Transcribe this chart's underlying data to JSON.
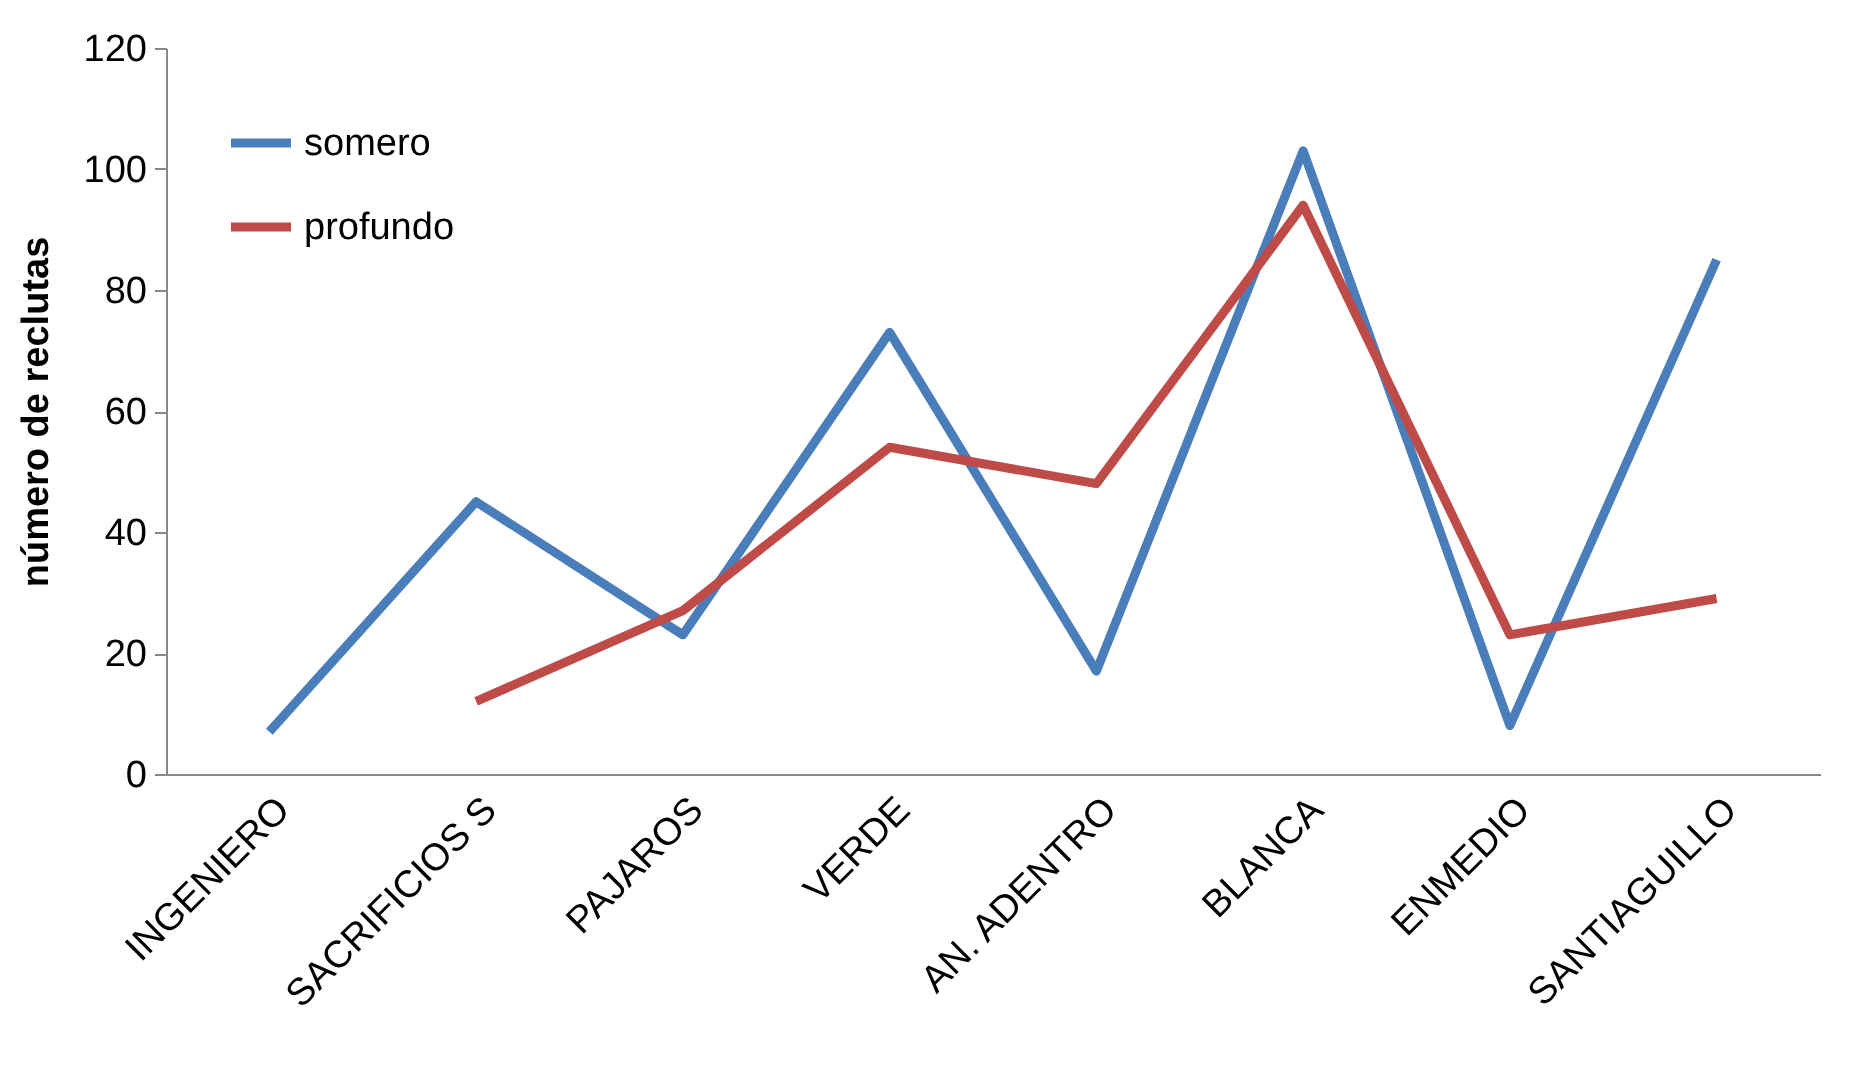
{
  "chart_data": {
    "type": "line",
    "ylabel": "número de reclutas",
    "categories": [
      "INGENIERO",
      "SACRIFICIOS S",
      "PAJAROS",
      "VERDE",
      "AN. ADENTRO",
      "BLANCA",
      "ENMEDIO",
      "SANTIAGUILLO"
    ],
    "series": [
      {
        "name": "somero",
        "color": "#4a7ebb",
        "values": [
          7,
          45,
          23,
          73,
          17,
          103,
          8,
          85
        ]
      },
      {
        "name": "profundo",
        "color": "#be4b48",
        "values": [
          null,
          12,
          27,
          54,
          48,
          94,
          23,
          29
        ]
      }
    ],
    "ylim": [
      0,
      120
    ],
    "yticks": [
      0,
      20,
      40,
      60,
      80,
      100,
      120
    ],
    "grid": false,
    "legend": "top left",
    "line_style": "solid",
    "marker": "none"
  }
}
